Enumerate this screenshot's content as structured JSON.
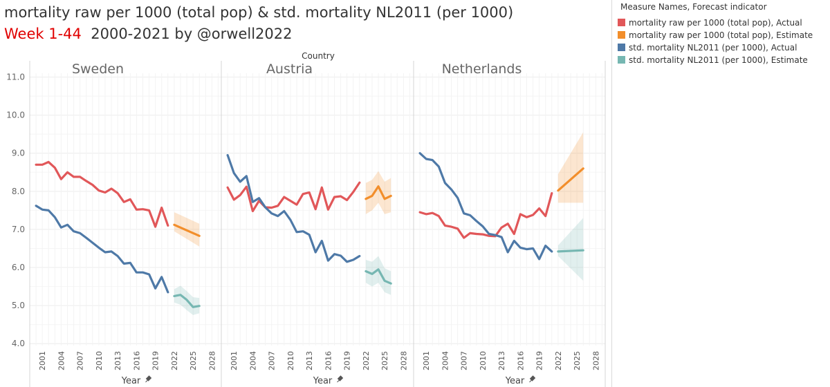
{
  "title": {
    "line1": "mortality raw per 1000 (total pop) & std. mortality NL2011  (per 1000)",
    "line2_highlight": "Week 1-44",
    "line2_rest": "2000-2021 by @orwell2022"
  },
  "legend": {
    "title": "Measure Names, Forecast indicator",
    "items": [
      {
        "label": "mortality raw per 1000 (total pop), Actual",
        "color": "#e15759"
      },
      {
        "label": "mortality raw per 1000 (total pop), Estimate",
        "color": "#f28e2b"
      },
      {
        "label": "std. mortality NL2011  (per 1000), Actual",
        "color": "#4e79a7"
      },
      {
        "label": "std. mortality NL2011  (per 1000), Estimate",
        "color": "#76b7b2"
      }
    ]
  },
  "chart_data": {
    "type": "line",
    "column_header": "Country",
    "xlabel": "Year",
    "x_ticks": [
      "2001",
      "2004",
      "2007",
      "2010",
      "2013",
      "2016",
      "2019",
      "2022",
      "2025",
      "2028"
    ],
    "x_range": [
      1999,
      2029.5
    ],
    "y_ticks": [
      "11.0",
      "10.0",
      "9.0",
      "8.0",
      "7.0",
      "6.0",
      "5.0",
      "4.0"
    ],
    "ylim": [
      3.95,
      11.1
    ],
    "panels": [
      {
        "country": "Sweden",
        "series": [
          {
            "name": "mortality raw per 1000 (total pop), Actual",
            "color": "#e15759",
            "x": [
              2000,
              2001,
              2002,
              2003,
              2004,
              2005,
              2006,
              2007,
              2008,
              2009,
              2010,
              2011,
              2012,
              2013,
              2014,
              2015,
              2016,
              2017,
              2018,
              2019,
              2020,
              2021
            ],
            "y": [
              8.7,
              8.7,
              8.77,
              8.62,
              8.32,
              8.5,
              8.38,
              8.38,
              8.27,
              8.17,
              8.02,
              7.97,
              8.07,
              7.95,
              7.72,
              7.79,
              7.52,
              7.53,
              7.5,
              7.07,
              7.57,
              7.1
            ]
          },
          {
            "name": "mortality raw per 1000 (total pop), Estimate",
            "color": "#f28e2b",
            "x": [
              2022,
              2026
            ],
            "y": [
              7.12,
              6.83
            ],
            "lower": [
              6.95,
              6.55
            ],
            "upper": [
              7.45,
              7.15
            ]
          },
          {
            "name": "std. mortality NL2011  (per 1000), Actual",
            "color": "#4e79a7",
            "x": [
              2000,
              2001,
              2002,
              2003,
              2004,
              2005,
              2006,
              2007,
              2008,
              2009,
              2010,
              2011,
              2012,
              2013,
              2014,
              2015,
              2016,
              2017,
              2018,
              2019,
              2020,
              2021
            ],
            "y": [
              7.62,
              7.52,
              7.5,
              7.32,
              7.05,
              7.12,
              6.95,
              6.9,
              6.78,
              6.65,
              6.52,
              6.4,
              6.42,
              6.3,
              6.1,
              6.12,
              5.87,
              5.87,
              5.82,
              5.45,
              5.75,
              5.35
            ]
          },
          {
            "name": "std. mortality NL2011  (per 1000), Estimate",
            "color": "#76b7b2",
            "x": [
              2022,
              2023,
              2024,
              2025,
              2026
            ],
            "y": [
              5.25,
              5.28,
              5.15,
              4.96,
              4.99
            ],
            "lower": [
              5.08,
              5.02,
              4.88,
              4.75,
              4.8
            ],
            "upper": [
              5.43,
              5.52,
              5.38,
              5.22,
              5.2
            ]
          }
        ]
      },
      {
        "country": "Austria",
        "series": [
          {
            "name": "mortality raw per 1000 (total pop), Actual",
            "color": "#e15759",
            "x": [
              2000,
              2001,
              2002,
              2003,
              2004,
              2005,
              2006,
              2007,
              2008,
              2009,
              2010,
              2011,
              2012,
              2013,
              2014,
              2015,
              2016,
              2017,
              2018,
              2019,
              2020,
              2021
            ],
            "y": [
              8.1,
              7.78,
              7.9,
              8.12,
              7.48,
              7.75,
              7.58,
              7.57,
              7.62,
              7.85,
              7.75,
              7.65,
              7.93,
              7.97,
              7.53,
              8.1,
              7.52,
              7.85,
              7.87,
              7.77,
              7.98,
              8.23
            ]
          },
          {
            "name": "mortality raw per 1000 (total pop), Estimate",
            "color": "#f28e2b",
            "x": [
              2022,
              2023,
              2024,
              2025,
              2026
            ],
            "y": [
              7.8,
              7.88,
              8.13,
              7.8,
              7.88
            ],
            "lower": [
              7.4,
              7.5,
              7.7,
              7.4,
              7.45
            ],
            "upper": [
              8.22,
              8.3,
              8.53,
              8.25,
              8.35
            ]
          },
          {
            "name": "std. mortality NL2011  (per 1000), Actual",
            "color": "#4e79a7",
            "x": [
              2000,
              2001,
              2002,
              2003,
              2004,
              2005,
              2006,
              2007,
              2008,
              2009,
              2010,
              2011,
              2012,
              2013,
              2014,
              2015,
              2016,
              2017,
              2018,
              2019,
              2020,
              2021
            ],
            "y": [
              8.95,
              8.48,
              8.25,
              8.4,
              7.72,
              7.82,
              7.58,
              7.42,
              7.35,
              7.48,
              7.25,
              6.93,
              6.95,
              6.86,
              6.4,
              6.7,
              6.18,
              6.35,
              6.31,
              6.15,
              6.2,
              6.3
            ]
          },
          {
            "name": "std. mortality NL2011  (per 1000), Estimate",
            "color": "#76b7b2",
            "x": [
              2022,
              2023,
              2024,
              2025,
              2026
            ],
            "y": [
              5.9,
              5.83,
              5.95,
              5.65,
              5.58
            ],
            "lower": [
              5.6,
              5.5,
              5.6,
              5.35,
              5.28
            ],
            "upper": [
              6.2,
              6.15,
              6.3,
              5.98,
              5.9
            ]
          }
        ]
      },
      {
        "country": "Netherlands",
        "series": [
          {
            "name": "mortality raw per 1000 (total pop), Actual",
            "color": "#e15759",
            "x": [
              2000,
              2001,
              2002,
              2003,
              2004,
              2005,
              2006,
              2007,
              2008,
              2009,
              2010,
              2011,
              2012,
              2013,
              2014,
              2015,
              2016,
              2017,
              2018,
              2019,
              2020,
              2021
            ],
            "y": [
              7.45,
              7.4,
              7.43,
              7.35,
              7.1,
              7.07,
              7.02,
              6.78,
              6.9,
              6.88,
              6.87,
              6.83,
              6.82,
              7.05,
              7.15,
              6.88,
              7.4,
              7.32,
              7.38,
              7.55,
              7.35,
              7.95
            ]
          },
          {
            "name": "mortality raw per 1000 (total pop), Estimate",
            "color": "#f28e2b",
            "x": [
              2022,
              2026
            ],
            "y": [
              8.02,
              8.6
            ],
            "lower": [
              7.7,
              7.7
            ],
            "upper": [
              8.45,
              9.55
            ]
          },
          {
            "name": "std. mortality NL2011  (per 1000), Actual",
            "color": "#4e79a7",
            "x": [
              2000,
              2001,
              2002,
              2003,
              2004,
              2005,
              2006,
              2007,
              2008,
              2009,
              2010,
              2011,
              2012,
              2013,
              2014,
              2015,
              2016,
              2017,
              2018,
              2019,
              2020,
              2021
            ],
            "y": [
              9.0,
              8.85,
              8.82,
              8.65,
              8.22,
              8.05,
              7.83,
              7.42,
              7.37,
              7.22,
              7.08,
              6.88,
              6.85,
              6.8,
              6.4,
              6.7,
              6.52,
              6.48,
              6.5,
              6.22,
              6.57,
              6.42
            ]
          },
          {
            "name": "std. mortality NL2011  (per 1000), Estimate",
            "color": "#76b7b2",
            "x": [
              2022,
              2026
            ],
            "y": [
              6.42,
              6.45
            ],
            "lower": [
              6.3,
              5.65
            ],
            "upper": [
              6.58,
              7.3
            ]
          }
        ]
      }
    ]
  }
}
